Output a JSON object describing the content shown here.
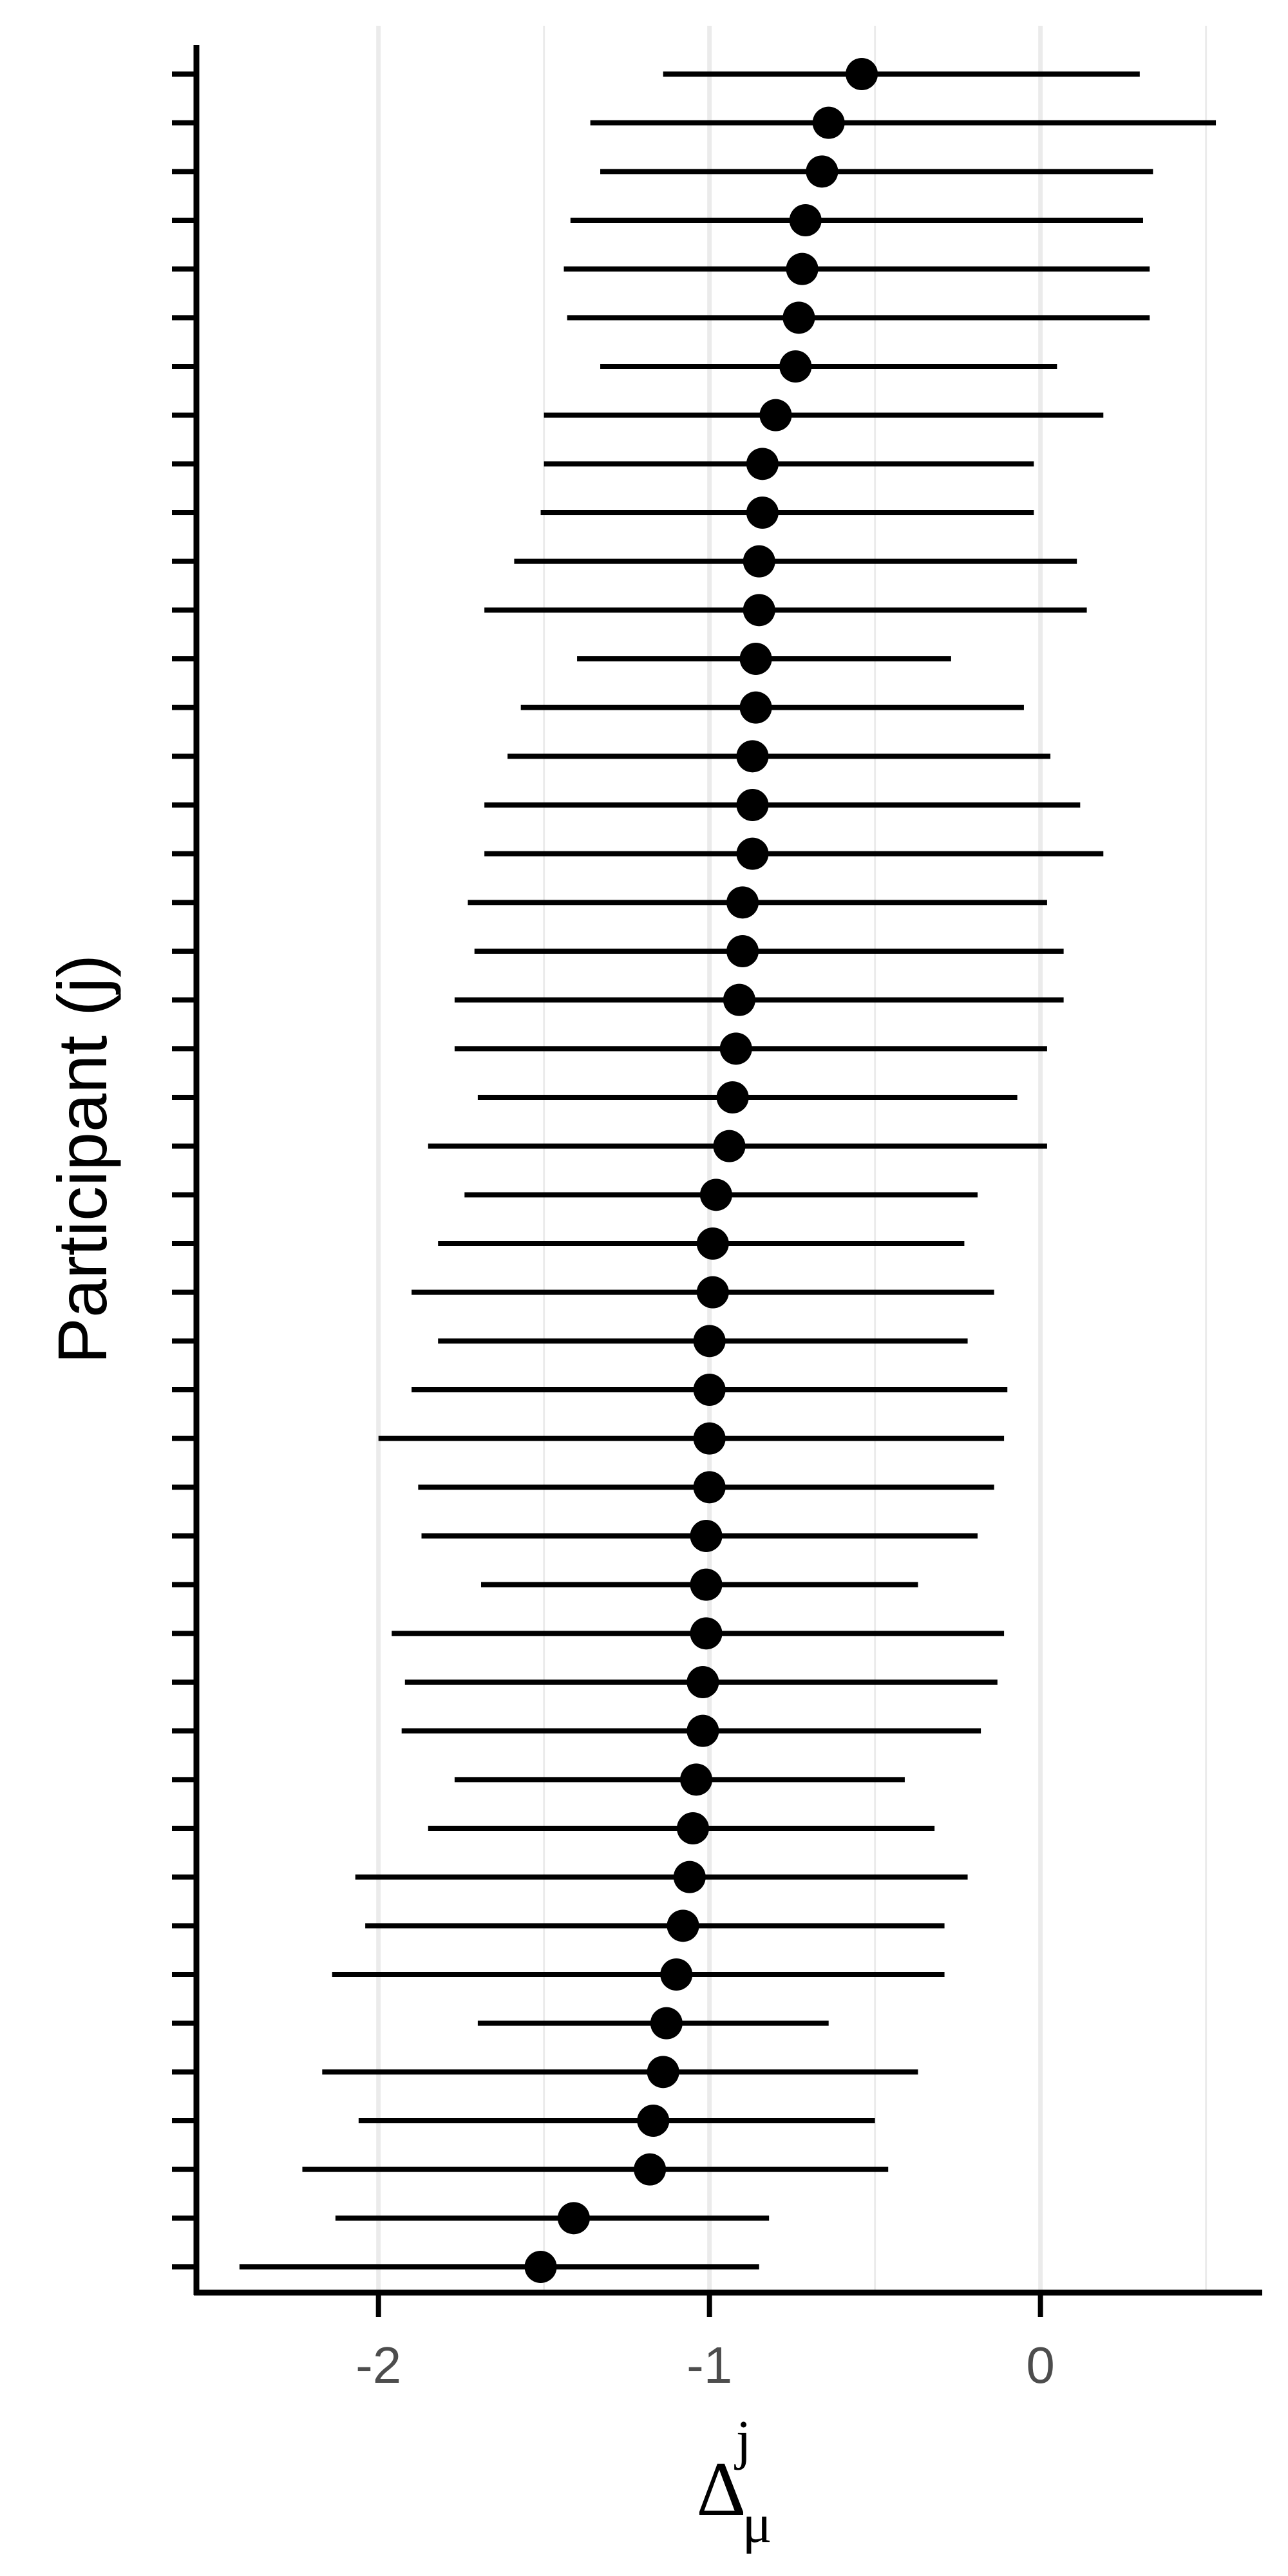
{
  "chart_data": {
    "type": "scatter",
    "subtype": "forest-plot",
    "title": "",
    "xlabel": {
      "base": "Δ",
      "subscript": "μ",
      "superscript": "j"
    },
    "ylabel": "Participant (j)",
    "xlim": [
      -2.55,
      0.67
    ],
    "x_ticks": [
      -2,
      -1,
      0
    ],
    "x_tick_labels": [
      "-2",
      "-1",
      "0"
    ],
    "x_minor_gridlines": [
      -1.5,
      -0.5,
      0.5
    ],
    "grid": "vertical",
    "y_tick_labels_shown": false,
    "point_color": "#000000",
    "gridline_color": "#ebebeb",
    "n_participants": 46,
    "series": [
      {
        "points": [
          {
            "estimate": -1.51,
            "lower": -2.42,
            "upper": -0.85
          },
          {
            "estimate": -1.41,
            "lower": -2.13,
            "upper": -0.82
          },
          {
            "estimate": -1.18,
            "lower": -2.23,
            "upper": -0.46
          },
          {
            "estimate": -1.17,
            "lower": -2.06,
            "upper": -0.5
          },
          {
            "estimate": -1.14,
            "lower": -2.17,
            "upper": -0.37
          },
          {
            "estimate": -1.13,
            "lower": -1.7,
            "upper": -0.64
          },
          {
            "estimate": -1.1,
            "lower": -2.14,
            "upper": -0.29
          },
          {
            "estimate": -1.08,
            "lower": -2.04,
            "upper": -0.29
          },
          {
            "estimate": -1.06,
            "lower": -2.07,
            "upper": -0.22
          },
          {
            "estimate": -1.05,
            "lower": -1.85,
            "upper": -0.32
          },
          {
            "estimate": -1.04,
            "lower": -1.77,
            "upper": -0.41
          },
          {
            "estimate": -1.02,
            "lower": -1.93,
            "upper": -0.18
          },
          {
            "estimate": -1.02,
            "lower": -1.92,
            "upper": -0.13
          },
          {
            "estimate": -1.01,
            "lower": -1.96,
            "upper": -0.11
          },
          {
            "estimate": -1.01,
            "lower": -1.69,
            "upper": -0.37
          },
          {
            "estimate": -1.01,
            "lower": -1.87,
            "upper": -0.19
          },
          {
            "estimate": -1.0,
            "lower": -1.88,
            "upper": -0.14
          },
          {
            "estimate": -1.0,
            "lower": -2.0,
            "upper": -0.11
          },
          {
            "estimate": -1.0,
            "lower": -1.9,
            "upper": -0.1
          },
          {
            "estimate": -1.0,
            "lower": -1.82,
            "upper": -0.22
          },
          {
            "estimate": -0.99,
            "lower": -1.9,
            "upper": -0.14
          },
          {
            "estimate": -0.99,
            "lower": -1.82,
            "upper": -0.23
          },
          {
            "estimate": -0.98,
            "lower": -1.74,
            "upper": -0.19
          },
          {
            "estimate": -0.94,
            "lower": -1.85,
            "upper": 0.02
          },
          {
            "estimate": -0.93,
            "lower": -1.7,
            "upper": -0.07
          },
          {
            "estimate": -0.92,
            "lower": -1.77,
            "upper": 0.02
          },
          {
            "estimate": -0.91,
            "lower": -1.77,
            "upper": 0.07
          },
          {
            "estimate": -0.9,
            "lower": -1.71,
            "upper": 0.07
          },
          {
            "estimate": -0.9,
            "lower": -1.73,
            "upper": 0.02
          },
          {
            "estimate": -0.87,
            "lower": -1.68,
            "upper": 0.19
          },
          {
            "estimate": -0.87,
            "lower": -1.68,
            "upper": 0.12
          },
          {
            "estimate": -0.87,
            "lower": -1.61,
            "upper": 0.03
          },
          {
            "estimate": -0.86,
            "lower": -1.57,
            "upper": -0.05
          },
          {
            "estimate": -0.86,
            "lower": -1.4,
            "upper": -0.27
          },
          {
            "estimate": -0.85,
            "lower": -1.68,
            "upper": 0.14
          },
          {
            "estimate": -0.85,
            "lower": -1.59,
            "upper": 0.11
          },
          {
            "estimate": -0.84,
            "lower": -1.51,
            "upper": -0.02
          },
          {
            "estimate": -0.84,
            "lower": -1.5,
            "upper": -0.02
          },
          {
            "estimate": -0.8,
            "lower": -1.5,
            "upper": 0.19
          },
          {
            "estimate": -0.74,
            "lower": -1.33,
            "upper": 0.05
          },
          {
            "estimate": -0.73,
            "lower": -1.43,
            "upper": 0.33
          },
          {
            "estimate": -0.72,
            "lower": -1.44,
            "upper": 0.33
          },
          {
            "estimate": -0.71,
            "lower": -1.42,
            "upper": 0.31
          },
          {
            "estimate": -0.66,
            "lower": -1.33,
            "upper": 0.34
          },
          {
            "estimate": -0.64,
            "lower": -1.36,
            "upper": 0.53
          },
          {
            "estimate": -0.54,
            "lower": -1.14,
            "upper": 0.3
          }
        ]
      }
    ]
  }
}
